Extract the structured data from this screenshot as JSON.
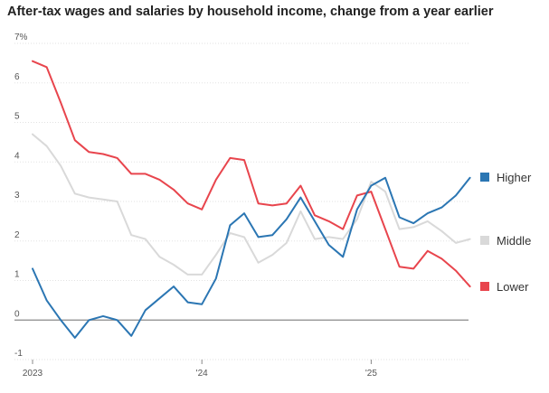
{
  "chart_data": {
    "type": "line",
    "title": "After-tax wages and salaries by household income, change from a year earlier",
    "xlabel": "",
    "ylabel": "",
    "ylim": [
      -1,
      7
    ],
    "ytick_labels": [
      "7%",
      "6",
      "5",
      "4",
      "3",
      "2",
      "1",
      "0",
      "-1"
    ],
    "ytick_values": [
      7,
      6,
      5,
      4,
      3,
      2,
      1,
      0,
      -1
    ],
    "xtick_labels": [
      "2023",
      "'24",
      "'25"
    ],
    "xtick_index": [
      0,
      12,
      24
    ],
    "x_count": 33,
    "series": [
      {
        "name": "Higher",
        "color": "#2b76b3",
        "values": [
          1.3,
          0.5,
          0.0,
          -0.45,
          0.0,
          0.1,
          0.0,
          -0.4,
          0.25,
          0.55,
          0.85,
          0.45,
          0.4,
          1.05,
          2.4,
          2.7,
          2.1,
          2.15,
          2.55,
          3.1,
          2.5,
          1.9,
          1.6,
          2.8,
          3.4,
          3.6,
          2.6,
          2.45,
          2.7,
          2.85,
          3.15,
          3.6,
          null
        ]
      },
      {
        "name": "Middle",
        "color": "#d9d9d9",
        "values": [
          4.7,
          4.4,
          3.9,
          3.2,
          3.1,
          3.05,
          3.0,
          2.15,
          2.05,
          1.6,
          1.4,
          1.15,
          1.15,
          1.65,
          2.2,
          2.1,
          1.45,
          1.65,
          1.95,
          2.75,
          2.05,
          2.1,
          2.05,
          2.55,
          3.5,
          3.25,
          2.3,
          2.35,
          2.5,
          2.25,
          1.95,
          2.05,
          null
        ]
      },
      {
        "name": "Lower",
        "color": "#e8454d",
        "values": [
          6.55,
          6.4,
          5.5,
          4.55,
          4.25,
          4.2,
          4.1,
          3.7,
          3.7,
          3.55,
          3.3,
          2.95,
          2.8,
          3.55,
          4.1,
          4.05,
          2.95,
          2.9,
          2.95,
          3.4,
          2.65,
          2.5,
          2.3,
          3.15,
          3.25,
          2.3,
          1.35,
          1.3,
          1.75,
          1.55,
          1.25,
          0.85,
          null
        ]
      }
    ]
  }
}
